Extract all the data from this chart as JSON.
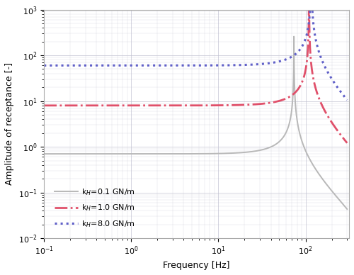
{
  "title": "",
  "xlabel": "Frequency [Hz]",
  "ylabel": "Amplitude of receptance [-]",
  "xlim_log": [
    -1,
    2.5
  ],
  "ylim_log": [
    -2,
    3
  ],
  "background_color": "#ffffff",
  "grid_color": "#c0c0d0",
  "line1": {
    "label_val": "=0.1 GN/m",
    "color": "#b8b8b8",
    "linestyle": "solid",
    "linewidth": 1.4
  },
  "line2": {
    "label_val": "=1.0 GN/m",
    "color": "#e0506a",
    "linestyle": "dashdot",
    "linewidth": 2.0
  },
  "line3": {
    "label_val": "=8.0 GN/m",
    "color": "#6060c8",
    "linestyle": "dotted",
    "linewidth": 2.2
  },
  "legend_fontsize": 8
}
